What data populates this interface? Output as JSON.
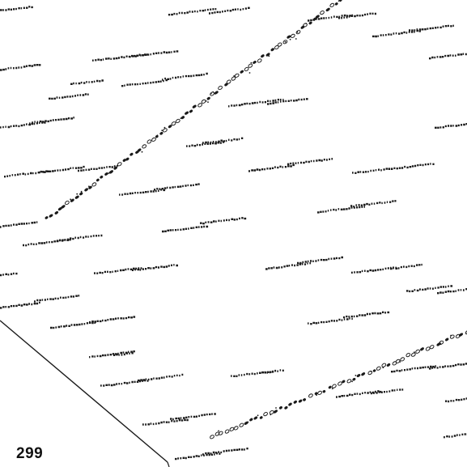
{
  "figure": {
    "page_number": "299",
    "ink_color": "#1a1a1a",
    "background_color": "#ffffff"
  }
}
